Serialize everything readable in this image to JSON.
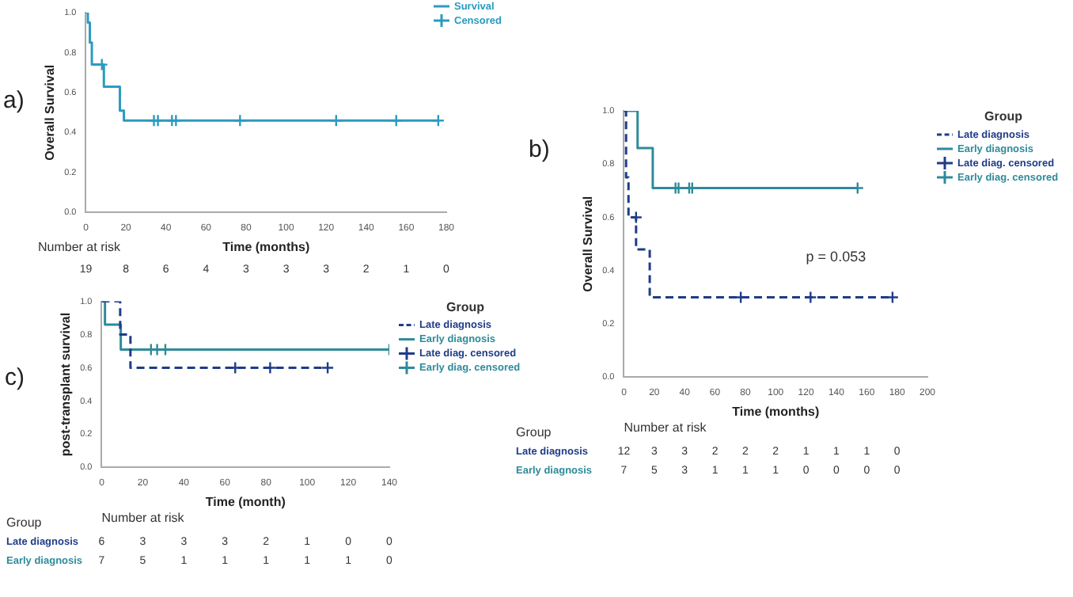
{
  "chart_data": [
    {
      "type": "step",
      "title": "a)",
      "xlabel": "Time (months)",
      "ylabel": "Overall Survival",
      "xlim": [
        0,
        180
      ],
      "xticks": [
        0,
        20,
        40,
        60,
        80,
        100,
        120,
        140,
        160,
        180
      ],
      "ylim": [
        0,
        1
      ],
      "yticks": [
        {
          "value": 0,
          "label": "0.0"
        },
        {
          "value": 0.2,
          "label": "0.2"
        },
        {
          "value": 0.4,
          "label": "0.4"
        },
        {
          "value": 0.6,
          "label": "0.6"
        },
        {
          "value": 0.8,
          "label": "0.8"
        },
        {
          "value": 1,
          "label": "1.0"
        }
      ],
      "legend": "top right",
      "series": [
        {
          "name": "Survival",
          "color": "#2b9bc0",
          "x": [
            0,
            1,
            2,
            3,
            9,
            17,
            19,
            176
          ],
          "values": [
            1.0,
            0.95,
            0.85,
            0.74,
            0.63,
            0.51,
            0.46,
            0.46
          ]
        },
        {
          "name": "Censored",
          "type": "scatter",
          "marker": "cross",
          "color": "#2b9bc0",
          "x": [
            8,
            34,
            36,
            43,
            45,
            77,
            125,
            155,
            176
          ],
          "values": [
            0.74,
            0.46,
            0.46,
            0.46,
            0.46,
            0.46,
            0.46,
            0.46,
            0.46
          ]
        }
      ],
      "annotations": [
        "Number at risk",
        "19 8 6 4 3 3 3 2 1 0"
      ]
    },
    {
      "type": "step",
      "title": "b)",
      "xlabel": "Time (months)",
      "ylabel": "Overall Survival",
      "xlim": [
        0,
        200
      ],
      "xticks": [
        0,
        20,
        40,
        60,
        80,
        100,
        120,
        140,
        160,
        180,
        200
      ],
      "ylim": [
        0,
        1
      ],
      "yticks": [
        {
          "value": 0,
          "label": "0.0"
        },
        {
          "value": 0.2,
          "label": "0.2"
        },
        {
          "value": 0.4,
          "label": "0.4"
        },
        {
          "value": 0.6,
          "label": "0.6"
        },
        {
          "value": 0.8,
          "label": "0.8"
        },
        {
          "value": 1,
          "label": "1.0"
        }
      ],
      "legend": "right",
      "legend_title": "Group",
      "series": [
        {
          "name": "Late diagnosis",
          "line_style": "dashed",
          "color": "#1f3c88",
          "x": [
            0,
            1.4,
            3,
            8,
            17,
            177
          ],
          "values": [
            1.0,
            0.75,
            0.6,
            0.48,
            0.3,
            0.3
          ]
        },
        {
          "name": "Early diagnosis",
          "color": "#2e8b9a",
          "x": [
            0,
            9,
            19,
            154
          ],
          "values": [
            1.0,
            0.86,
            0.71,
            0.71
          ]
        },
        {
          "name": "Late diag. censored",
          "type": "scatter",
          "marker": "cross",
          "color": "#1f3c88",
          "x": [
            8,
            77,
            123,
            177
          ],
          "values": [
            0.6,
            0.3,
            0.3,
            0.3
          ]
        },
        {
          "name": "Early diag. censored",
          "type": "scatter",
          "marker": "cross",
          "color": "#2e8b9a",
          "x": [
            34,
            36,
            43,
            45,
            154
          ],
          "values": [
            0.71,
            0.71,
            0.71,
            0.71,
            0.71
          ]
        }
      ],
      "annotations": [
        "p = 0.053",
        "Group",
        "Number at risk",
        "Late diagnosis",
        "12 3 3 2 2 2 1 1 1 0",
        "Early diagnosis",
        "7 5 3 1 1 1 0 0 0 0"
      ]
    },
    {
      "type": "step",
      "title": "c)",
      "xlabel": "Time (month)",
      "ylabel": "post-transplant survival",
      "xlim": [
        0,
        140
      ],
      "xticks": [
        0,
        20,
        40,
        60,
        80,
        100,
        120,
        140
      ],
      "ylim": [
        0,
        1
      ],
      "yticks": [
        {
          "value": 0,
          "label": "0.0"
        },
        {
          "value": 0.2,
          "label": "0.2"
        },
        {
          "value": 0.4,
          "label": "0.4"
        },
        {
          "value": 0.6,
          "label": "0.6"
        },
        {
          "value": 0.8,
          "label": "0.8"
        },
        {
          "value": 1,
          "label": "1.0"
        }
      ],
      "legend": "right",
      "legend_title": "Group",
      "series": [
        {
          "name": "Late diagnosis",
          "line_style": "dashed",
          "color": "#1f3c88",
          "x": [
            0,
            9,
            14,
            110
          ],
          "values": [
            1.0,
            0.8,
            0.6,
            0.6
          ]
        },
        {
          "name": "Early diagnosis",
          "color": "#2e8b9a",
          "x": [
            0,
            1.6,
            9.3,
            140
          ],
          "values": [
            1.0,
            0.86,
            0.71,
            0.71
          ]
        },
        {
          "name": "Late diag. censored",
          "type": "scatter",
          "marker": "cross",
          "color": "#1f3c88",
          "x": [
            65,
            82,
            110
          ],
          "values": [
            0.6,
            0.6,
            0.6
          ]
        },
        {
          "name": "Early diag. censored",
          "type": "scatter",
          "marker": "cross",
          "color": "#2e8b9a",
          "x": [
            24,
            27,
            31,
            140
          ],
          "values": [
            0.71,
            0.71,
            0.71,
            0.71
          ]
        }
      ],
      "annotations": [
        "Group",
        "Number at risk",
        "Late diagnosis",
        "6 3 3 3 2 1 0 0",
        "Early diagnosis",
        "7 5 1 1 1 1 1 0"
      ]
    }
  ]
}
